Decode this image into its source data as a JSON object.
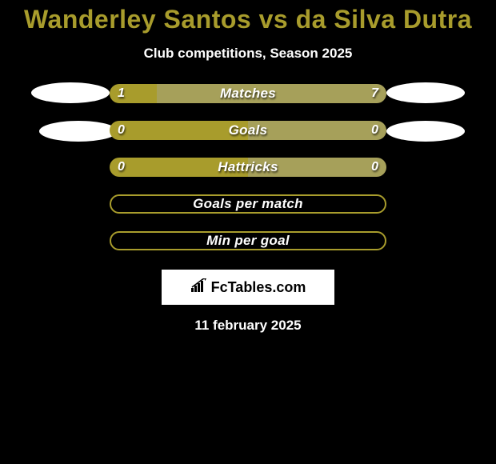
{
  "title_color": "#a89c2c",
  "background_color": "#000000",
  "text_color": "#ffffff",
  "header": {
    "title": "Wanderley Santos vs da Silva Dutra",
    "subtitle": "Club competitions, Season 2025"
  },
  "avatar_color": "#ffffff",
  "bars": [
    {
      "label": "Matches",
      "left_value": "1",
      "right_value": "7",
      "left_pct": 17,
      "right_pct": 83,
      "left_color": "#a89c2c",
      "right_color": "#a6a05a",
      "show_left_avatar": true,
      "show_right_avatar": true,
      "bordered": false
    },
    {
      "label": "Goals",
      "left_value": "0",
      "right_value": "0",
      "left_pct": 50,
      "right_pct": 50,
      "left_color": "#a89c2c",
      "right_color": "#a6a05a",
      "show_left_avatar": true,
      "show_right_avatar": true,
      "bordered": false
    },
    {
      "label": "Hattricks",
      "left_value": "0",
      "right_value": "0",
      "left_pct": 50,
      "right_pct": 50,
      "left_color": "#a89c2c",
      "right_color": "#a6a05a",
      "show_left_avatar": false,
      "show_right_avatar": false,
      "bordered": false
    },
    {
      "label": "Goals per match",
      "left_value": "",
      "right_value": "",
      "left_pct": 0,
      "right_pct": 0,
      "left_color": "#a89c2c",
      "right_color": "#a6a05a",
      "show_left_avatar": false,
      "show_right_avatar": false,
      "bordered": true,
      "border_color": "#a89c2c"
    },
    {
      "label": "Min per goal",
      "left_value": "",
      "right_value": "",
      "left_pct": 0,
      "right_pct": 0,
      "left_color": "#a89c2c",
      "right_color": "#a6a05a",
      "show_left_avatar": false,
      "show_right_avatar": false,
      "bordered": true,
      "border_color": "#a89c2c"
    }
  ],
  "logo": {
    "text": "FcTables.com",
    "box_bg": "#ffffff",
    "text_color": "#000000"
  },
  "date": "11 february 2025"
}
